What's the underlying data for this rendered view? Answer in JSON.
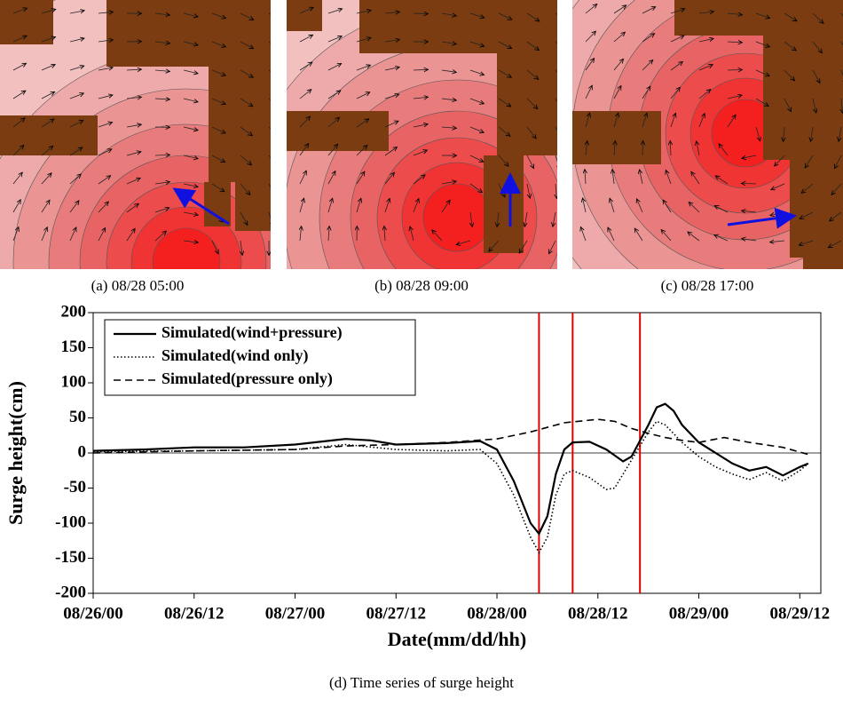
{
  "panels": [
    {
      "caption": "(a)  08/28  05:00"
    },
    {
      "caption": "(b)  08/28  09:00"
    },
    {
      "caption": "(c)  08/28  17:00"
    }
  ],
  "figure_caption": "(d)  Time series of surge height",
  "chart_data": {
    "type": "line",
    "xlabel": "Date(mm/dd/hh)",
    "ylabel": "Surge height(cm)",
    "xlim": [
      0,
      86.5
    ],
    "xticks": [
      {
        "value": 0,
        "label": "08/26/00"
      },
      {
        "value": 12,
        "label": "08/26/12"
      },
      {
        "value": 24,
        "label": "08/27/00"
      },
      {
        "value": 36,
        "label": "08/27/12"
      },
      {
        "value": 48,
        "label": "08/28/00"
      },
      {
        "value": 60,
        "label": "08/28/12"
      },
      {
        "value": 72,
        "label": "08/29/00"
      },
      {
        "value": 84,
        "label": "08/29/12"
      }
    ],
    "ylim": [
      -200,
      200
    ],
    "yticks": [
      200,
      150,
      100,
      50,
      0,
      -50,
      -100,
      -150,
      -200
    ],
    "legend": "upper left",
    "vlines": {
      "color": "#e00000",
      "x": [
        53,
        57,
        65
      ]
    },
    "series": [
      {
        "name": "Simulated(wind+pressure)",
        "color": "#000000",
        "dash": "solid",
        "x": [
          0,
          6,
          12,
          18,
          24,
          30,
          33,
          36,
          42,
          46,
          48,
          50,
          52,
          53,
          54,
          55,
          56,
          57,
          59,
          61,
          63,
          64,
          66,
          67,
          68,
          69,
          70,
          72,
          74,
          76,
          78,
          80,
          82,
          84,
          85
        ],
        "values": [
          3,
          5,
          8,
          8,
          12,
          20,
          18,
          12,
          14,
          17,
          5,
          -40,
          -100,
          -115,
          -90,
          -30,
          5,
          15,
          16,
          5,
          -12,
          -5,
          40,
          65,
          70,
          60,
          40,
          15,
          0,
          -15,
          -25,
          -20,
          -32,
          -20,
          -15
        ]
      },
      {
        "name": "Simulated(wind only)",
        "color": "#000000",
        "dash": "dotted",
        "x": [
          0,
          12,
          24,
          30,
          36,
          42,
          46,
          48,
          50,
          52,
          53,
          54,
          55,
          56,
          57,
          59,
          61,
          62,
          64,
          66,
          67,
          68,
          70,
          72,
          74,
          76,
          78,
          80,
          82,
          84,
          85
        ],
        "values": [
          2,
          3,
          5,
          12,
          5,
          3,
          5,
          -15,
          -60,
          -120,
          -142,
          -120,
          -60,
          -30,
          -25,
          -35,
          -52,
          -50,
          -10,
          30,
          45,
          40,
          15,
          -5,
          -20,
          -30,
          -38,
          -28,
          -40,
          -25,
          -15
        ]
      },
      {
        "name": "Simulated(pressure only)",
        "color": "#000000",
        "dash": "dashed",
        "x": [
          0,
          12,
          24,
          30,
          36,
          42,
          48,
          52,
          56,
          60,
          62,
          64,
          66,
          68,
          70,
          72,
          75,
          78,
          82,
          85
        ],
        "values": [
          0,
          3,
          5,
          10,
          12,
          15,
          20,
          30,
          43,
          48,
          45,
          35,
          28,
          22,
          18,
          15,
          22,
          15,
          8,
          -2
        ]
      }
    ]
  }
}
